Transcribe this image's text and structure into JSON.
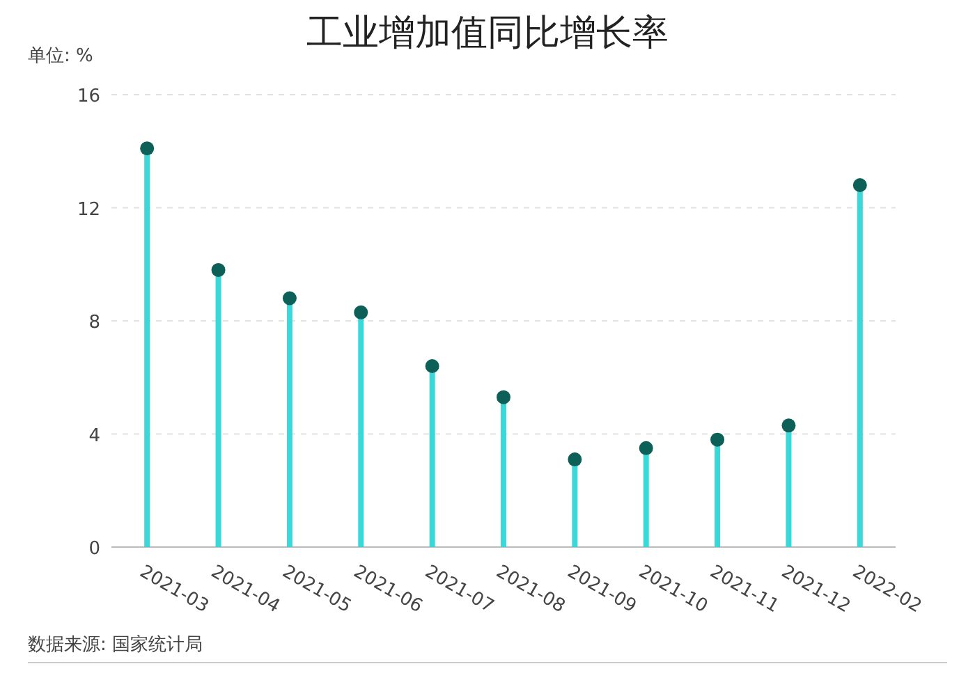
{
  "chart_data": {
    "type": "lollipop",
    "title": "工业增加值同比增长率",
    "ylabel": "单位: %",
    "categories": [
      "2021-03",
      "2021-04",
      "2021-05",
      "2021-06",
      "2021-07",
      "2021-08",
      "2021-09",
      "2021-10",
      "2021-11",
      "2021-12",
      "2022-02"
    ],
    "series": [
      {
        "color": "#0d6058",
        "values": [
          14.1,
          9.8,
          8.8,
          8.3,
          6.4,
          5.3,
          3.1,
          3.5,
          3.8,
          4.3,
          12.8
        ]
      }
    ],
    "ylim": [
      0,
      16
    ],
    "yticks": [
      0,
      4,
      8,
      12,
      16
    ],
    "grid": "y",
    "marker": "circle",
    "annotations": [
      "数据来源: 国家统计局"
    ]
  }
}
